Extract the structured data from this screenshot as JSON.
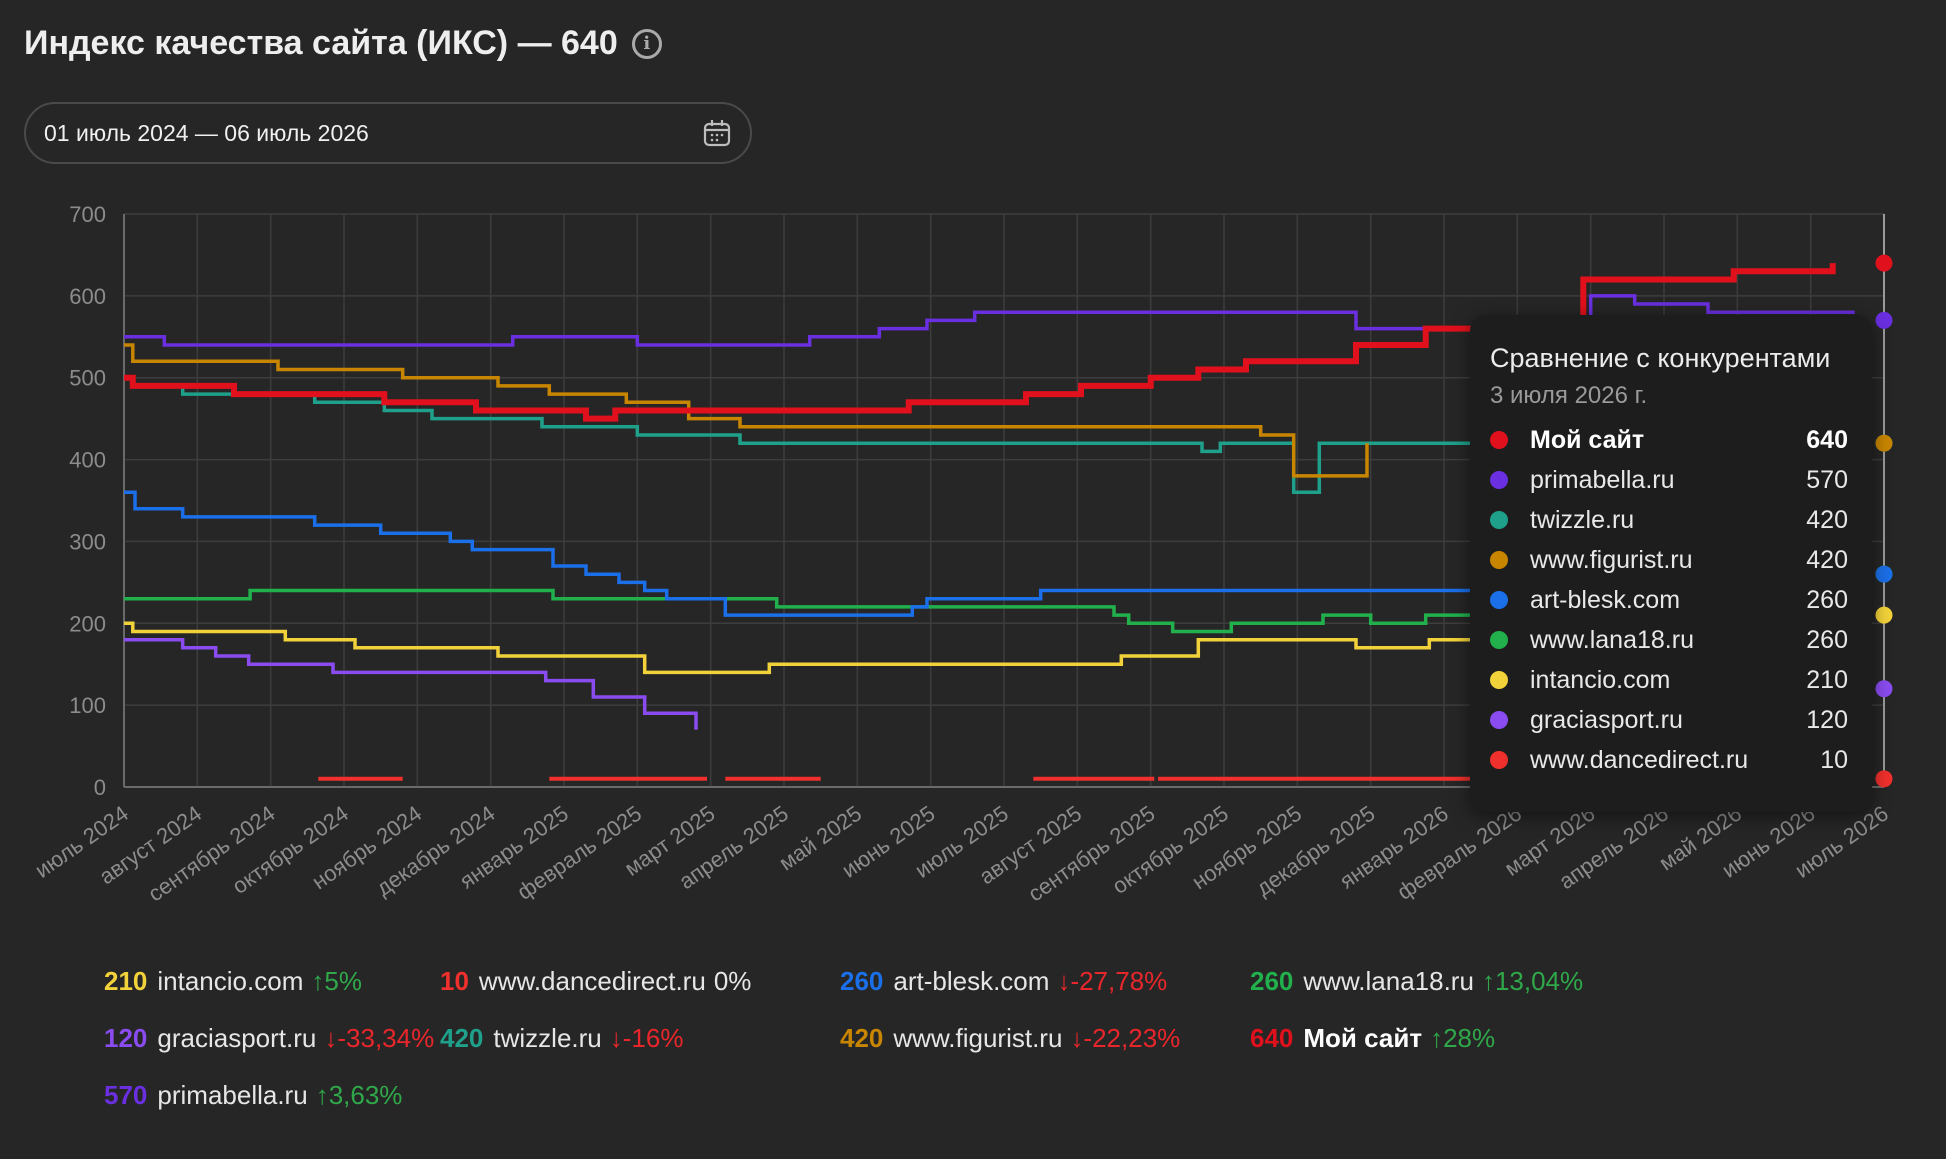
{
  "header": {
    "title": "Индекс качества сайта (ИКС) — 640"
  },
  "date_range": {
    "value": "01 июль 2024 — 06 июль 2026"
  },
  "tooltip": {
    "title": "Сравнение с конкурентами",
    "date": "3 июля 2026 г.",
    "rows": [
      {
        "name": "Мой сайт",
        "value": "640",
        "color": "#e0101c",
        "bold": true
      },
      {
        "name": "primabella.ru",
        "value": "570",
        "color": "#6a2fe0"
      },
      {
        "name": "twizzle.ru",
        "value": "420",
        "color": "#1fa08a"
      },
      {
        "name": "www.figurist.ru",
        "value": "420",
        "color": "#c88500"
      },
      {
        "name": "art-blesk.com",
        "value": "260",
        "color": "#1b6fe8"
      },
      {
        "name": "www.lana18.ru",
        "value": "260",
        "color": "#21b04c"
      },
      {
        "name": "intancio.com",
        "value": "210",
        "color": "#f2d23a"
      },
      {
        "name": "graciasport.ru",
        "value": "120",
        "color": "#8a4cf0"
      },
      {
        "name": "www.dancedirect.ru",
        "value": "10",
        "color": "#f0302c"
      }
    ]
  },
  "legend": [
    {
      "value": "210",
      "name": "intancio.com",
      "change": "↑5%",
      "dir": "up",
      "color": "#f2d23a"
    },
    {
      "value": "10",
      "name": "www.dancedirect.ru",
      "change": "0%",
      "dir": "zero",
      "color": "#f0302c"
    },
    {
      "value": "260",
      "name": "art-blesk.com",
      "change": "↓-27,78%",
      "dir": "down",
      "color": "#1b6fe8"
    },
    {
      "value": "260",
      "name": "www.lana18.ru",
      "change": "↑13,04%",
      "dir": "up",
      "color": "#21b04c"
    },
    {
      "value": "120",
      "name": "graciasport.ru",
      "change": "↓-33,34%",
      "dir": "down",
      "color": "#8a4cf0"
    },
    {
      "value": "420",
      "name": "twizzle.ru",
      "change": "↓-16%",
      "dir": "down",
      "color": "#1fa08a"
    },
    {
      "value": "420",
      "name": "www.figurist.ru",
      "change": "↓-22,23%",
      "dir": "down",
      "color": "#c88500"
    },
    {
      "value": "640",
      "name": "Мой сайт",
      "change": "↑28%",
      "dir": "up",
      "color": "#e0101c",
      "bold": true
    },
    {
      "value": "570",
      "name": "primabella.ru",
      "change": "↑3,63%",
      "dir": "up",
      "color": "#6a2fe0"
    }
  ],
  "chart_data": {
    "type": "line",
    "ylim": [
      0,
      700
    ],
    "yticks": [
      "0",
      "100",
      "200",
      "300",
      "400",
      "500",
      "600",
      "700"
    ],
    "categories": [
      "июль 2024",
      "август 2024",
      "сентябрь 2024",
      "октябрь 2024",
      "ноябрь 2024",
      "декабрь 2024",
      "январь 2025",
      "февраль 2025",
      "март 2025",
      "апрель 2025",
      "май 2025",
      "июнь 2025",
      "июль 2025",
      "август 2025",
      "сентябрь 2025",
      "октябрь 2025",
      "ноябрь 2025",
      "декабрь 2025",
      "январь 2026",
      "февраль 2026",
      "март 2026",
      "апрель 2026",
      "май 2026",
      "июнь 2026",
      "июль 2026"
    ],
    "series": [
      {
        "name": "www.dancedirect.ru",
        "color": "#f0302c",
        "segments": [
          [
            [
              2.65,
              10
            ],
            [
              3.8,
              10
            ]
          ],
          [
            [
              5.8,
              10
            ],
            [
              7.95,
              10
            ]
          ],
          [
            [
              8.2,
              10
            ],
            [
              9.5,
              10
            ]
          ],
          [
            [
              12.4,
              10
            ],
            [
              14.05,
              10
            ]
          ],
          [
            [
              14.1,
              10
            ],
            [
              18.4,
              10
            ]
          ],
          [
            [
              24,
              10
            ],
            [
              24,
              10
            ]
          ]
        ]
      },
      {
        "name": "graciasport.ru",
        "color": "#8a4cf0",
        "points": [
          [
            0,
            180
          ],
          [
            0.8,
            180
          ],
          [
            0.8,
            170
          ],
          [
            1.25,
            170
          ],
          [
            1.25,
            160
          ],
          [
            1.7,
            160
          ],
          [
            1.7,
            150
          ],
          [
            2.85,
            150
          ],
          [
            2.85,
            140
          ],
          [
            5.75,
            140
          ],
          [
            5.75,
            130
          ],
          [
            6.4,
            130
          ],
          [
            6.4,
            110
          ],
          [
            7.1,
            110
          ],
          [
            7.1,
            90
          ],
          [
            7.8,
            90
          ],
          [
            7.8,
            70
          ],
          [
            24,
            120
          ]
        ]
      },
      {
        "name": "intancio.com",
        "color": "#f2d23a",
        "points": [
          [
            0,
            200
          ],
          [
            0.12,
            200
          ],
          [
            0.12,
            190
          ],
          [
            2.2,
            190
          ],
          [
            2.2,
            180
          ],
          [
            3.15,
            180
          ],
          [
            3.15,
            170
          ],
          [
            5.1,
            170
          ],
          [
            5.1,
            160
          ],
          [
            7.1,
            160
          ],
          [
            7.1,
            140
          ],
          [
            8.8,
            140
          ],
          [
            8.8,
            150
          ],
          [
            13.6,
            150
          ],
          [
            13.6,
            160
          ],
          [
            14.65,
            160
          ],
          [
            14.65,
            180
          ],
          [
            16.8,
            180
          ],
          [
            16.8,
            170
          ],
          [
            17.8,
            170
          ],
          [
            17.8,
            180
          ],
          [
            18.6,
            180
          ],
          [
            24,
            210
          ]
        ]
      },
      {
        "name": "www.lana18.ru",
        "color": "#21b04c",
        "points": [
          [
            0,
            230
          ],
          [
            1.72,
            230
          ],
          [
            1.72,
            240
          ],
          [
            5.85,
            240
          ],
          [
            5.85,
            230
          ],
          [
            7.3,
            230
          ],
          [
            7.3,
            230
          ],
          [
            8.9,
            230
          ],
          [
            8.9,
            220
          ],
          [
            13.5,
            220
          ],
          [
            13.5,
            210
          ],
          [
            13.7,
            210
          ],
          [
            13.7,
            200
          ],
          [
            14.3,
            200
          ],
          [
            14.3,
            190
          ],
          [
            15.1,
            190
          ],
          [
            15.1,
            200
          ],
          [
            16.35,
            200
          ],
          [
            16.35,
            210
          ],
          [
            17.0,
            210
          ],
          [
            17.0,
            200
          ],
          [
            17.75,
            200
          ],
          [
            17.75,
            210
          ],
          [
            18.5,
            210
          ],
          [
            24,
            260
          ]
        ]
      },
      {
        "name": "art-blesk.com",
        "color": "#1b6fe8",
        "points": [
          [
            0,
            360
          ],
          [
            0.15,
            360
          ],
          [
            0.15,
            340
          ],
          [
            0.8,
            340
          ],
          [
            0.8,
            330
          ],
          [
            2.6,
            330
          ],
          [
            2.6,
            320
          ],
          [
            3.5,
            320
          ],
          [
            3.5,
            310
          ],
          [
            4.45,
            310
          ],
          [
            4.45,
            300
          ],
          [
            4.75,
            300
          ],
          [
            4.75,
            290
          ],
          [
            5.85,
            290
          ],
          [
            5.85,
            270
          ],
          [
            6.3,
            270
          ],
          [
            6.3,
            260
          ],
          [
            6.75,
            260
          ],
          [
            6.75,
            250
          ],
          [
            7.1,
            250
          ],
          [
            7.1,
            240
          ],
          [
            7.4,
            240
          ],
          [
            7.4,
            230
          ],
          [
            8.2,
            230
          ],
          [
            8.2,
            210
          ],
          [
            10.75,
            210
          ],
          [
            10.75,
            220
          ],
          [
            10.95,
            220
          ],
          [
            10.95,
            230
          ],
          [
            12.5,
            230
          ],
          [
            12.5,
            240
          ],
          [
            18.6,
            240
          ],
          [
            24,
            260
          ]
        ]
      },
      {
        "name": "twizzle.ru",
        "color": "#1fa08a",
        "points": [
          [
            0,
            500
          ],
          [
            0.12,
            500
          ],
          [
            0.12,
            490
          ],
          [
            0.8,
            490
          ],
          [
            0.8,
            480
          ],
          [
            2.6,
            480
          ],
          [
            2.6,
            470
          ],
          [
            3.55,
            470
          ],
          [
            3.55,
            460
          ],
          [
            4.2,
            460
          ],
          [
            4.2,
            450
          ],
          [
            5.7,
            450
          ],
          [
            5.7,
            440
          ],
          [
            7.0,
            440
          ],
          [
            7.0,
            430
          ],
          [
            8.4,
            430
          ],
          [
            8.4,
            420
          ],
          [
            14.7,
            420
          ],
          [
            14.7,
            410
          ],
          [
            14.95,
            410
          ],
          [
            14.95,
            420
          ],
          [
            15.95,
            420
          ],
          [
            15.95,
            360
          ],
          [
            16.3,
            360
          ],
          [
            16.3,
            420
          ],
          [
            18.6,
            420
          ],
          [
            24,
            420
          ]
        ]
      },
      {
        "name": "www.figurist.ru",
        "color": "#c88500",
        "points": [
          [
            0,
            540
          ],
          [
            0.12,
            540
          ],
          [
            0.12,
            520
          ],
          [
            2.1,
            520
          ],
          [
            2.1,
            510
          ],
          [
            3.8,
            510
          ],
          [
            3.8,
            500
          ],
          [
            5.1,
            500
          ],
          [
            5.1,
            490
          ],
          [
            5.8,
            490
          ],
          [
            5.8,
            480
          ],
          [
            6.85,
            480
          ],
          [
            6.85,
            470
          ],
          [
            7.7,
            470
          ],
          [
            7.7,
            450
          ],
          [
            8.4,
            450
          ],
          [
            8.4,
            440
          ],
          [
            15.5,
            440
          ],
          [
            15.5,
            430
          ],
          [
            15.95,
            430
          ],
          [
            15.95,
            380
          ],
          [
            16.95,
            380
          ],
          [
            16.95,
            420
          ],
          [
            24,
            420
          ]
        ]
      },
      {
        "name": "primabella.ru",
        "color": "#6a2fe0",
        "points": [
          [
            0,
            550
          ],
          [
            0.55,
            550
          ],
          [
            0.55,
            540
          ],
          [
            5.3,
            540
          ],
          [
            5.3,
            550
          ],
          [
            7.0,
            550
          ],
          [
            7.0,
            540
          ],
          [
            9.35,
            540
          ],
          [
            9.35,
            550
          ],
          [
            10.3,
            550
          ],
          [
            10.3,
            560
          ],
          [
            10.95,
            560
          ],
          [
            10.95,
            570
          ],
          [
            11.6,
            570
          ],
          [
            11.6,
            580
          ],
          [
            16.8,
            580
          ],
          [
            16.8,
            560
          ],
          [
            18.6,
            560
          ],
          [
            18.6,
            540
          ],
          [
            20.0,
            540
          ],
          [
            20.0,
            600
          ],
          [
            20.6,
            600
          ],
          [
            20.6,
            590
          ],
          [
            21.6,
            590
          ],
          [
            21.6,
            580
          ],
          [
            23.6,
            580
          ],
          [
            24,
            570
          ]
        ]
      },
      {
        "name": "Мой сайт",
        "color": "#e0101c",
        "width": 6,
        "points": [
          [
            0,
            500
          ],
          [
            0.12,
            500
          ],
          [
            0.12,
            490
          ],
          [
            1.5,
            490
          ],
          [
            1.5,
            480
          ],
          [
            3.55,
            480
          ],
          [
            3.55,
            470
          ],
          [
            4.8,
            470
          ],
          [
            4.8,
            460
          ],
          [
            6.3,
            460
          ],
          [
            6.3,
            450
          ],
          [
            6.7,
            450
          ],
          [
            6.7,
            460
          ],
          [
            10.7,
            460
          ],
          [
            10.7,
            470
          ],
          [
            12.3,
            470
          ],
          [
            12.3,
            480
          ],
          [
            13.05,
            480
          ],
          [
            13.05,
            490
          ],
          [
            14.0,
            490
          ],
          [
            14.0,
            500
          ],
          [
            14.65,
            500
          ],
          [
            14.65,
            510
          ],
          [
            15.3,
            510
          ],
          [
            15.3,
            520
          ],
          [
            16.8,
            520
          ],
          [
            16.8,
            540
          ],
          [
            17.75,
            540
          ],
          [
            17.75,
            560
          ],
          [
            18.1,
            560
          ],
          [
            18.1,
            560
          ],
          [
            19.9,
            560
          ],
          [
            19.9,
            620
          ],
          [
            21.95,
            620
          ],
          [
            21.95,
            630
          ],
          [
            23.3,
            630
          ],
          [
            23.3,
            640
          ],
          [
            24,
            640
          ]
        ]
      }
    ]
  }
}
